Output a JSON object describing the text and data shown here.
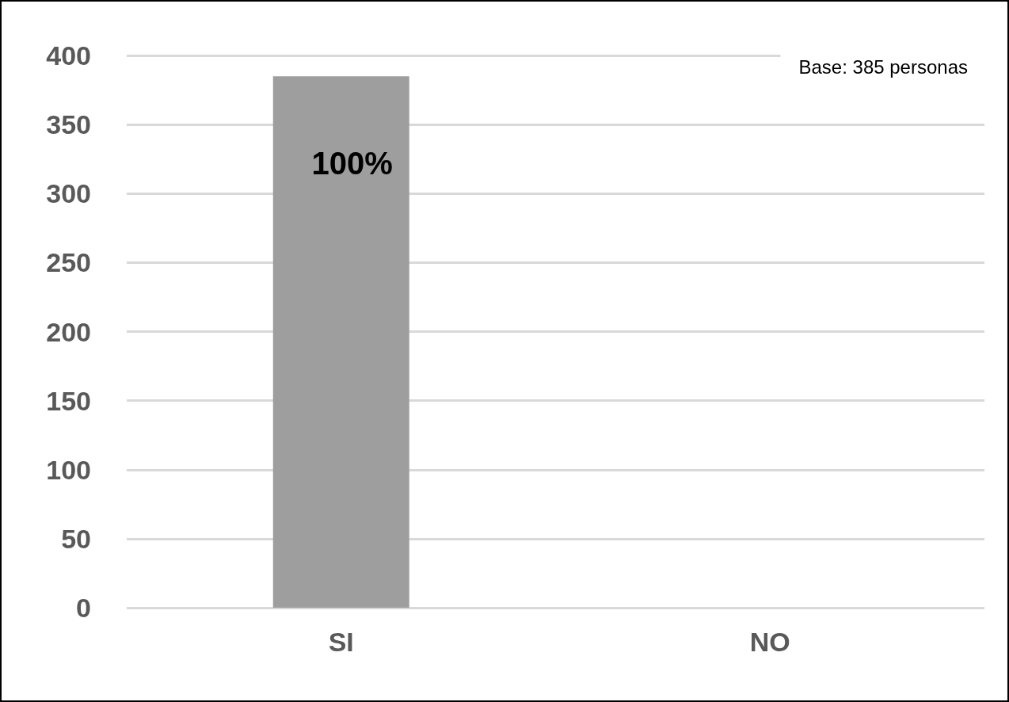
{
  "chart_data": {
    "type": "bar",
    "categories": [
      "SI",
      "NO"
    ],
    "values": [
      385,
      0
    ],
    "color": "#9e9e9e",
    "ylim": [
      0,
      400
    ],
    "yticks": [
      0,
      50,
      100,
      150,
      200,
      250,
      300,
      350,
      400
    ],
    "grid": "y",
    "annotations": [
      "Base: 385 personas",
      {
        "text": "100%",
        "x": "SI",
        "y": 385
      }
    ]
  }
}
